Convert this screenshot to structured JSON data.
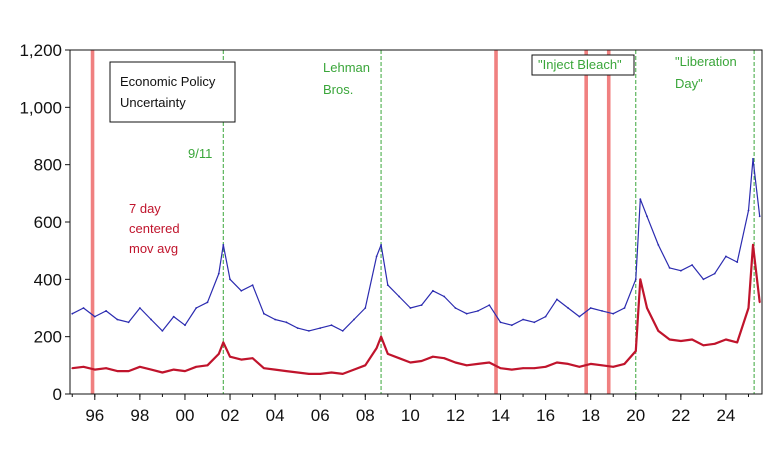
{
  "chart_data": {
    "type": "line",
    "title": "",
    "xlabel": "",
    "ylabel": "",
    "ylim": [
      0,
      1200
    ],
    "xlim": [
      1994.9,
      2025.6
    ],
    "y_ticks": [
      {
        "value": 0,
        "label": "0"
      },
      {
        "value": 200,
        "label": "200"
      },
      {
        "value": 400,
        "label": "400"
      },
      {
        "value": 600,
        "label": "600"
      },
      {
        "value": 800,
        "label": "800"
      },
      {
        "value": 1000,
        "label": "1,000"
      },
      {
        "value": 1200,
        "label": "1,200"
      }
    ],
    "x_ticks": [
      {
        "value": 1996,
        "label": "96"
      },
      {
        "value": 1998,
        "label": "98"
      },
      {
        "value": 2000,
        "label": "00"
      },
      {
        "value": 2002,
        "label": "02"
      },
      {
        "value": 2004,
        "label": "04"
      },
      {
        "value": 2006,
        "label": "06"
      },
      {
        "value": 2008,
        "label": "08"
      },
      {
        "value": 2010,
        "label": "10"
      },
      {
        "value": 2012,
        "label": "12"
      },
      {
        "value": 2014,
        "label": "14"
      },
      {
        "value": 2016,
        "label": "16"
      },
      {
        "value": 2018,
        "label": "18"
      },
      {
        "value": 2020,
        "label": "20"
      },
      {
        "value": 2022,
        "label": "22"
      },
      {
        "value": 2024,
        "label": "24"
      }
    ],
    "grid": false,
    "series": [
      {
        "name": "Economic Policy Uncertainty",
        "color": "#2b2bb0",
        "x": [
          1995.0,
          1995.5,
          1996.0,
          1996.5,
          1997.0,
          1997.5,
          1998.0,
          1998.5,
          1999.0,
          1999.5,
          2000.0,
          2000.5,
          2001.0,
          2001.5,
          2001.7,
          2002.0,
          2002.5,
          2003.0,
          2003.5,
          2004.0,
          2004.5,
          2005.0,
          2005.5,
          2006.0,
          2006.5,
          2007.0,
          2007.5,
          2008.0,
          2008.5,
          2008.7,
          2009.0,
          2009.5,
          2010.0,
          2010.5,
          2011.0,
          2011.5,
          2012.0,
          2012.5,
          2013.0,
          2013.5,
          2014.0,
          2014.5,
          2015.0,
          2015.5,
          2016.0,
          2016.5,
          2017.0,
          2017.5,
          2018.0,
          2018.5,
          2019.0,
          2019.5,
          2020.0,
          2020.2,
          2020.5,
          2021.0,
          2021.5,
          2022.0,
          2022.5,
          2023.0,
          2023.5,
          2024.0,
          2024.5,
          2025.0,
          2025.2,
          2025.5
        ],
        "values": [
          280,
          300,
          270,
          290,
          260,
          250,
          300,
          260,
          220,
          270,
          240,
          300,
          320,
          420,
          520,
          400,
          360,
          380,
          280,
          260,
          250,
          230,
          220,
          230,
          240,
          220,
          260,
          300,
          480,
          520,
          380,
          340,
          300,
          310,
          360,
          340,
          300,
          280,
          290,
          310,
          250,
          240,
          260,
          250,
          270,
          330,
          300,
          270,
          300,
          290,
          280,
          300,
          400,
          680,
          620,
          520,
          440,
          430,
          450,
          400,
          420,
          480,
          460,
          640,
          820,
          620
        ]
      },
      {
        "name": "7 day centered mov avg",
        "color": "#c0142c",
        "x": [
          1995.0,
          1995.5,
          1996.0,
          1996.5,
          1997.0,
          1997.5,
          1998.0,
          1998.5,
          1999.0,
          1999.5,
          2000.0,
          2000.5,
          2001.0,
          2001.5,
          2001.7,
          2002.0,
          2002.5,
          2003.0,
          2003.5,
          2004.0,
          2004.5,
          2005.0,
          2005.5,
          2006.0,
          2006.5,
          2007.0,
          2007.5,
          2008.0,
          2008.5,
          2008.7,
          2009.0,
          2009.5,
          2010.0,
          2010.5,
          2011.0,
          2011.5,
          2012.0,
          2012.5,
          2013.0,
          2013.5,
          2014.0,
          2014.5,
          2015.0,
          2015.5,
          2016.0,
          2016.5,
          2017.0,
          2017.5,
          2018.0,
          2018.5,
          2019.0,
          2019.5,
          2020.0,
          2020.2,
          2020.5,
          2021.0,
          2021.5,
          2022.0,
          2022.5,
          2023.0,
          2023.5,
          2024.0,
          2024.5,
          2025.0,
          2025.2,
          2025.5
        ],
        "values": [
          90,
          95,
          85,
          90,
          80,
          80,
          95,
          85,
          75,
          85,
          80,
          95,
          100,
          140,
          180,
          130,
          120,
          125,
          90,
          85,
          80,
          75,
          70,
          70,
          75,
          70,
          85,
          100,
          160,
          200,
          140,
          125,
          110,
          115,
          130,
          125,
          110,
          100,
          105,
          110,
          90,
          85,
          90,
          90,
          95,
          110,
          105,
          95,
          105,
          100,
          95,
          105,
          150,
          400,
          300,
          220,
          190,
          185,
          190,
          170,
          175,
          190,
          180,
          300,
          520,
          320
        ]
      }
    ],
    "legend": {
      "label": "Economic Policy\nUncertainty",
      "lines": [
        "Economic Policy",
        "Uncertainty"
      ]
    },
    "annotations": {
      "series_label": [
        "7 day",
        "centered",
        "mov avg"
      ],
      "events": [
        {
          "x": 2001.7,
          "lines": [
            "9/11"
          ]
        },
        {
          "x": 2008.7,
          "lines": [
            "Lehman",
            "Bros."
          ]
        },
        {
          "x": 2020.3,
          "lines": [
            "\"Inject Bleach\""
          ],
          "boxed": true
        },
        {
          "x": 2025.25,
          "lines": [
            "\"Liberation",
            "Day\""
          ]
        }
      ],
      "event_lines": [
        2001.7,
        2008.7,
        2020.0,
        2025.25
      ],
      "red_bars": [
        1995.9,
        2013.8,
        2017.8,
        2018.8
      ]
    }
  }
}
